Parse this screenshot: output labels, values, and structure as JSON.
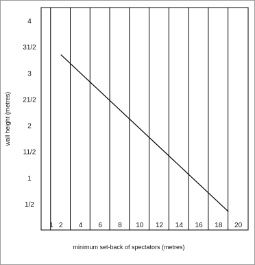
{
  "chart_data": {
    "type": "line",
    "title": "",
    "xlabel": "minimum set-back of spectators (metres)",
    "ylabel": "wall height (metres)",
    "xlim": [
      0,
      21
    ],
    "ylim": [
      0,
      4.25
    ],
    "grid": "vertical lines only",
    "x_ticks": [
      {
        "value": 1,
        "label": "1"
      },
      {
        "value": 2,
        "label": "2"
      },
      {
        "value": 4,
        "label": "4"
      },
      {
        "value": 6,
        "label": "6"
      },
      {
        "value": 8,
        "label": "8"
      },
      {
        "value": 10,
        "label": "10"
      },
      {
        "value": 12,
        "label": "12"
      },
      {
        "value": 14,
        "label": "14"
      },
      {
        "value": 16,
        "label": "16"
      },
      {
        "value": 18,
        "label": "18"
      },
      {
        "value": 20,
        "label": "20"
      }
    ],
    "y_ticks": [
      {
        "value": 0.5,
        "label": "1/2"
      },
      {
        "value": 1,
        "label": "1"
      },
      {
        "value": 1.5,
        "label": "11/2"
      },
      {
        "value": 2,
        "label": "2"
      },
      {
        "value": 2.5,
        "label": "21/2"
      },
      {
        "value": 3,
        "label": "3"
      },
      {
        "value": 3.5,
        "label": "31/2"
      },
      {
        "value": 4,
        "label": "4"
      }
    ],
    "series": [
      {
        "x": [
          2,
          19
        ],
        "y": [
          3.35,
          0.35
        ]
      }
    ],
    "colors": {
      "line": "#000000",
      "grid": "#000000",
      "frame": "#9a9a9a"
    }
  }
}
